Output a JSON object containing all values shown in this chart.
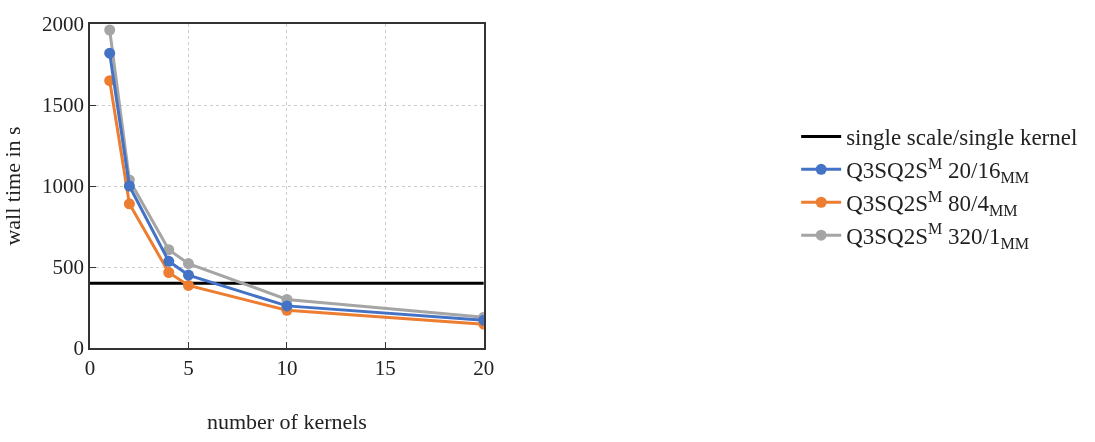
{
  "chart_data": {
    "type": "line",
    "xlabel": "number of kernels",
    "ylabel": "wall time in s",
    "xlim": [
      0,
      20
    ],
    "xticks": [
      0,
      5,
      10,
      15,
      20
    ],
    "ylim": [
      0,
      2000
    ],
    "yticks": [
      0,
      500,
      1000,
      1500,
      2000
    ],
    "grid": true,
    "legend": "right",
    "marker": "circle",
    "line_style": "solid",
    "ref_lines": [
      {
        "axis": "y",
        "value": 400,
        "label": "single scale/single kernel",
        "color": "#000000"
      }
    ],
    "x": [
      1,
      2,
      4,
      5,
      10,
      20
    ],
    "series": [
      {
        "name": "Q3SQ2S$^{M}$ 20/16$_{MM}$",
        "color": "#4472c4",
        "values": [
          1820,
          1000,
          535,
          450,
          260,
          172
        ]
      },
      {
        "name": "Q3SQ2S$^{M}$ 80/4$_{MM}$",
        "color": "#ed7d31",
        "values": [
          1650,
          890,
          466,
          386,
          233,
          147
        ]
      },
      {
        "name": "Q3SQ2S$^{M}$ 320/1$_{MM}$",
        "color": "#a5a5a5",
        "values": [
          1963,
          1037,
          607,
          521,
          300,
          190
        ]
      }
    ]
  }
}
